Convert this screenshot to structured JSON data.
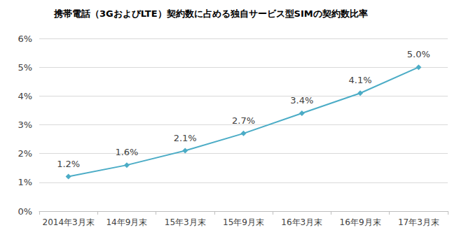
{
  "chart_data": {
    "type": "line",
    "title": "携帯電話（3GおよびLTE）契約数に占める独自サービス型SIMの契約数比率",
    "categories": [
      "2014年3月末",
      "14年9月末",
      "15年3月末",
      "15年9月末",
      "16年3月末",
      "16年9月末",
      "17年3月末"
    ],
    "values": [
      1.2,
      1.6,
      2.1,
      2.7,
      3.4,
      4.1,
      5.0
    ],
    "value_labels": [
      "1.2%",
      "1.6%",
      "2.1%",
      "2.7%",
      "3.4%",
      "4.1%",
      "5.0%"
    ],
    "color": "#4bacc6",
    "marker": "diamond",
    "data_labels": true,
    "ylim": [
      0,
      6
    ],
    "yticks": [
      {
        "value": 0,
        "label": "0%"
      },
      {
        "value": 1,
        "label": "1%"
      },
      {
        "value": 2,
        "label": "2%"
      },
      {
        "value": 3,
        "label": "3%"
      },
      {
        "value": 4,
        "label": "4%"
      },
      {
        "value": 5,
        "label": "5%"
      },
      {
        "value": 6,
        "label": "6%"
      }
    ],
    "grid": true
  }
}
